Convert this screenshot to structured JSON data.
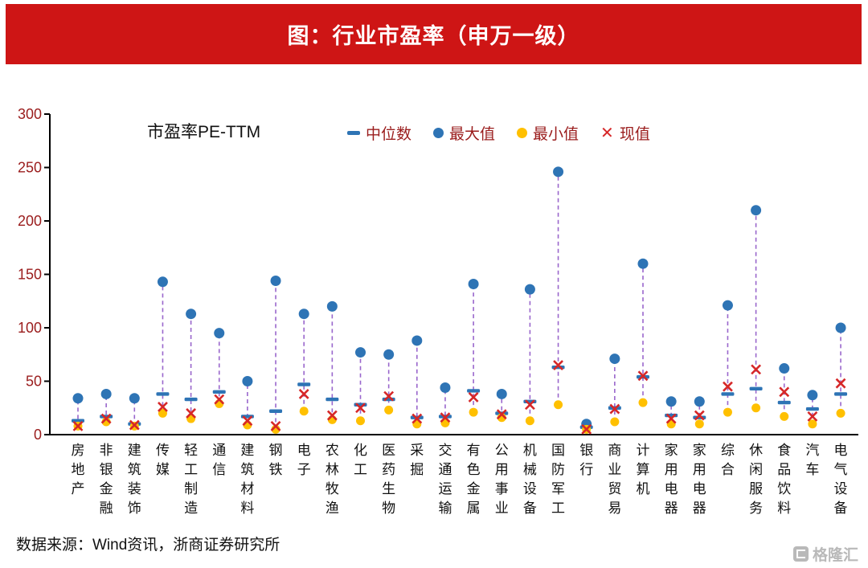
{
  "banner": {
    "title": "图：行业市盈率（申万一级）"
  },
  "plot_label": "市盈率PE-TTM",
  "legend": {
    "items": [
      {
        "label": "中位数",
        "marker": "dash",
        "color": "#2e74b5"
      },
      {
        "label": "最大值",
        "marker": "circle",
        "color": "#2e74b5"
      },
      {
        "label": "最小值",
        "marker": "circle",
        "color": "#ffc000"
      },
      {
        "label": "现值",
        "marker": "x",
        "color": "#d62728"
      }
    ]
  },
  "footer": {
    "source": "数据来源：Wind资讯，浙商证券研究所"
  },
  "watermark": {
    "text": "格隆汇"
  },
  "colors": {
    "banner_bg": "#ce1515",
    "banner_text": "#ffffff",
    "blue": "#2e74b5",
    "yellow": "#ffc000",
    "red": "#d62728",
    "connector": "#9966cc",
    "axis_line": "#000000",
    "y_tick_text": "#9a1c1c",
    "x_label_text": "#111111",
    "legend_text": "#9a1c1c"
  },
  "chart_data": {
    "type": "scatter",
    "title": "图：行业市盈率（申万一级）",
    "ylabel": "市盈率PE-TTM",
    "xlabel": "",
    "ylim": [
      0,
      300
    ],
    "yticks": [
      0,
      50,
      100,
      150,
      200,
      250,
      300
    ],
    "grid": false,
    "legend_position": "top",
    "connector_style": "dashed vertical line from min to max",
    "categories": [
      "房地产",
      "非银金融",
      "建筑装饰",
      "传媒",
      "轻工制造",
      "通信",
      "建筑材料",
      "钢铁",
      "电子",
      "农林牧渔",
      "化工",
      "医药生物",
      "采掘",
      "交通运输",
      "有色金属",
      "公用事业",
      "机械设备",
      "国防军工",
      "银行",
      "商业贸易",
      "计算机",
      "家用电器",
      "家用电器",
      "综合",
      "休闲服务",
      "食品饮料",
      "汽车",
      "电气设备"
    ],
    "series": [
      {
        "name": "中位数",
        "marker": "dash",
        "values": [
          13,
          17,
          10,
          38,
          33,
          40,
          17,
          22,
          47,
          33,
          28,
          33,
          16,
          17,
          41,
          20,
          31,
          63,
          7,
          25,
          54,
          18,
          16,
          38,
          43,
          30,
          24,
          38
        ]
      },
      {
        "name": "最大值",
        "marker": "circle",
        "values": [
          34,
          38,
          34,
          143,
          113,
          95,
          50,
          144,
          113,
          120,
          77,
          75,
          88,
          44,
          141,
          38,
          136,
          246,
          10,
          71,
          160,
          31,
          31,
          121,
          210,
          62,
          37,
          100
        ]
      },
      {
        "name": "最小值",
        "marker": "circle",
        "values": [
          8,
          12,
          8,
          20,
          15,
          29,
          9,
          5,
          22,
          14,
          13,
          23,
          10,
          11,
          21,
          16,
          13,
          28,
          5,
          12,
          30,
          10,
          10,
          21,
          25,
          17,
          10,
          20
        ]
      },
      {
        "name": "现值",
        "marker": "x",
        "values": [
          8,
          15,
          9,
          26,
          20,
          33,
          13,
          8,
          38,
          18,
          25,
          36,
          15,
          16,
          35,
          19,
          28,
          65,
          5,
          24,
          55,
          15,
          18,
          45,
          61,
          40,
          17,
          48
        ]
      }
    ]
  }
}
